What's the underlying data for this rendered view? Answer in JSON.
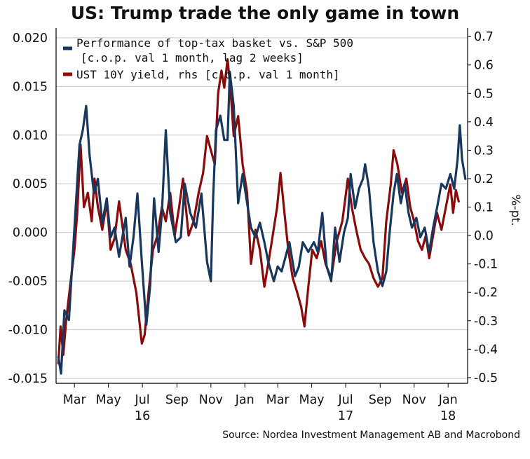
{
  "title": "US: Trump trade the only game in town",
  "source": "Source: Nordea Investment Management AB and Macrobond",
  "colors": {
    "series1": "#17375e",
    "series2": "#8b0a0a",
    "grid": "#c8c8c8",
    "axis": "#000000"
  },
  "chart_data": {
    "type": "line",
    "title": "US: Trump trade the only game in town",
    "x_axis": {
      "type": "date",
      "range": [
        "2016-01-28",
        "2018-02-05"
      ],
      "tick_labels": [
        {
          "date": "2016-03-01",
          "label": "Mar"
        },
        {
          "date": "2016-05-01",
          "label": "May"
        },
        {
          "date": "2016-07-01",
          "label": "Jul"
        },
        {
          "date": "2016-09-01",
          "label": "Sep"
        },
        {
          "date": "2016-11-01",
          "label": "Nov"
        },
        {
          "date": "2017-01-01",
          "label": "Jan"
        },
        {
          "date": "2017-03-01",
          "label": "Mar"
        },
        {
          "date": "2017-05-01",
          "label": "May"
        },
        {
          "date": "2017-07-01",
          "label": "Jul"
        },
        {
          "date": "2017-09-01",
          "label": "Sep"
        },
        {
          "date": "2017-11-01",
          "label": "Nov"
        },
        {
          "date": "2018-01-01",
          "label": "Jan"
        }
      ],
      "year_labels": [
        {
          "date": "2016-07-01",
          "label": "16"
        },
        {
          "date": "2017-07-01",
          "label": "17"
        },
        {
          "date": "2018-01-01",
          "label": "18"
        }
      ]
    },
    "y_left": {
      "range": [
        -0.0155,
        0.021
      ],
      "ticks": [
        "0.020",
        "0.015",
        "0.010",
        "0.005",
        "0.000",
        "-0.005",
        "-0.010",
        "-0.015"
      ]
    },
    "y_right": {
      "label": "%-pt.",
      "range": [
        -0.52,
        0.73
      ],
      "ticks": [
        "0.7",
        "0.6",
        "0.5",
        "0.4",
        "0.3",
        "0.2",
        "0.1",
        "0.0",
        "-0.1",
        "-0.2",
        "-0.3",
        "-0.4",
        "-0.5"
      ]
    },
    "grid": true,
    "legend_position": "top-left",
    "series": [
      {
        "name": "Performance of top-tax basket vs. S&P 500",
        "name_line2": "[c.o.p. val 1 month, lag 2 weeks]",
        "axis": "left",
        "color": "#17375e",
        "points": [
          [
            "2016-02-01",
            -0.0128
          ],
          [
            "2016-02-06",
            -0.0145
          ],
          [
            "2016-02-12",
            -0.008
          ],
          [
            "2016-02-20",
            -0.009
          ],
          [
            "2016-03-01",
            0.0005
          ],
          [
            "2016-03-10",
            0.009
          ],
          [
            "2016-03-16",
            0.0105
          ],
          [
            "2016-03-22",
            0.013
          ],
          [
            "2016-03-28",
            0.008
          ],
          [
            "2016-04-05",
            0.004
          ],
          [
            "2016-04-12",
            0.0055
          ],
          [
            "2016-04-20",
            0.001
          ],
          [
            "2016-04-28",
            0.0035
          ],
          [
            "2016-05-05",
            -0.0005
          ],
          [
            "2016-05-12",
            0.0005
          ],
          [
            "2016-05-20",
            -0.0025
          ],
          [
            "2016-06-01",
            0.0015
          ],
          [
            "2016-06-08",
            -0.0035
          ],
          [
            "2016-06-15",
            -0.0005
          ],
          [
            "2016-06-22",
            0.004
          ],
          [
            "2016-06-30",
            -0.003
          ],
          [
            "2016-07-08",
            -0.0095
          ],
          [
            "2016-07-15",
            -0.0055
          ],
          [
            "2016-07-22",
            0.0035
          ],
          [
            "2016-07-30",
            -0.002
          ],
          [
            "2016-08-05",
            0.002
          ],
          [
            "2016-08-12",
            0.0105
          ],
          [
            "2016-08-20",
            0.002
          ],
          [
            "2016-08-30",
            -0.001
          ],
          [
            "2016-09-08",
            -0.0005
          ],
          [
            "2016-09-15",
            0.005
          ],
          [
            "2016-09-25",
            0.002
          ],
          [
            "2016-10-05",
            0.0005
          ],
          [
            "2016-10-15",
            0.004
          ],
          [
            "2016-10-25",
            -0.003
          ],
          [
            "2016-11-01",
            -0.005
          ],
          [
            "2016-11-05",
            0.0035
          ],
          [
            "2016-11-10",
            0.0105
          ],
          [
            "2016-11-18",
            0.012
          ],
          [
            "2016-11-25",
            0.0095
          ],
          [
            "2016-12-01",
            0.0095
          ],
          [
            "2016-12-05",
            0.0165
          ],
          [
            "2016-12-12",
            0.013
          ],
          [
            "2016-12-20",
            0.003
          ],
          [
            "2016-12-28",
            0.006
          ],
          [
            "2017-01-05",
            0.003
          ],
          [
            "2017-01-12",
            0.0005
          ],
          [
            "2017-01-20",
            -0.0005
          ],
          [
            "2017-01-28",
            0.001
          ],
          [
            "2017-02-05",
            -0.001
          ],
          [
            "2017-02-12",
            -0.003
          ],
          [
            "2017-02-22",
            -0.005
          ],
          [
            "2017-03-01",
            -0.0035
          ],
          [
            "2017-03-08",
            -0.004
          ],
          [
            "2017-03-15",
            -0.0025
          ],
          [
            "2017-03-22",
            -0.001
          ],
          [
            "2017-04-01",
            -0.0045
          ],
          [
            "2017-04-08",
            -0.0035
          ],
          [
            "2017-04-15",
            -0.001
          ],
          [
            "2017-04-25",
            -0.002
          ],
          [
            "2017-05-05",
            -0.001
          ],
          [
            "2017-05-12",
            -0.002
          ],
          [
            "2017-05-20",
            0.002
          ],
          [
            "2017-05-28",
            -0.0035
          ],
          [
            "2017-06-05",
            -0.005
          ],
          [
            "2017-06-12",
            0.0005
          ],
          [
            "2017-06-20",
            -0.003
          ],
          [
            "2017-06-28",
            0.0
          ],
          [
            "2017-07-05",
            0.0015
          ],
          [
            "2017-07-10",
            0.006
          ],
          [
            "2017-07-18",
            0.0025
          ],
          [
            "2017-07-25",
            0.0045
          ],
          [
            "2017-08-01",
            0.0055
          ],
          [
            "2017-08-05",
            0.007
          ],
          [
            "2017-08-12",
            0.0045
          ],
          [
            "2017-08-20",
            -0.001
          ],
          [
            "2017-08-28",
            -0.004
          ],
          [
            "2017-09-05",
            -0.0055
          ],
          [
            "2017-09-12",
            -0.004
          ],
          [
            "2017-09-18",
            0.0
          ],
          [
            "2017-09-25",
            0.004
          ],
          [
            "2017-10-01",
            0.006
          ],
          [
            "2017-10-08",
            0.003
          ],
          [
            "2017-10-15",
            0.005
          ],
          [
            "2017-10-22",
            0.002
          ],
          [
            "2017-10-28",
            0.0005
          ],
          [
            "2017-11-05",
            0.0015
          ],
          [
            "2017-11-12",
            -0.0005
          ],
          [
            "2017-11-20",
            0.0005
          ],
          [
            "2017-11-28",
            -0.002
          ],
          [
            "2017-12-05",
            0.0005
          ],
          [
            "2017-12-12",
            0.0025
          ],
          [
            "2017-12-20",
            0.005
          ],
          [
            "2017-12-28",
            0.0045
          ],
          [
            "2018-01-05",
            0.006
          ],
          [
            "2018-01-12",
            0.0045
          ],
          [
            "2018-01-18",
            0.0075
          ],
          [
            "2018-01-22",
            0.011
          ],
          [
            "2018-01-26",
            0.0075
          ],
          [
            "2018-02-01",
            0.0055
          ]
        ]
      },
      {
        "name": "UST 10Y yield, rhs [c.o.p. val 1 month]",
        "axis": "right",
        "color": "#8b0a0a",
        "points": [
          [
            "2016-02-01",
            -0.45
          ],
          [
            "2016-02-05",
            -0.32
          ],
          [
            "2016-02-10",
            -0.42
          ],
          [
            "2016-02-15",
            -0.3
          ],
          [
            "2016-02-22",
            -0.18
          ],
          [
            "2016-03-01",
            -0.05
          ],
          [
            "2016-03-06",
            0.08
          ],
          [
            "2016-03-12",
            0.32
          ],
          [
            "2016-03-18",
            0.1
          ],
          [
            "2016-03-25",
            0.15
          ],
          [
            "2016-04-01",
            0.05
          ],
          [
            "2016-04-06",
            0.2
          ],
          [
            "2016-04-12",
            0.1
          ],
          [
            "2016-04-20",
            0.02
          ],
          [
            "2016-04-28",
            0.12
          ],
          [
            "2016-05-05",
            -0.05
          ],
          [
            "2016-05-12",
            -0.01
          ],
          [
            "2016-05-20",
            0.12
          ],
          [
            "2016-06-01",
            -0.05
          ],
          [
            "2016-06-10",
            -0.1
          ],
          [
            "2016-06-20",
            -0.2
          ],
          [
            "2016-06-30",
            -0.38
          ],
          [
            "2016-07-05",
            -0.35
          ],
          [
            "2016-07-12",
            -0.2
          ],
          [
            "2016-07-20",
            -0.05
          ],
          [
            "2016-07-28",
            0.0
          ],
          [
            "2016-08-05",
            0.1
          ],
          [
            "2016-08-12",
            0.05
          ],
          [
            "2016-08-20",
            0.15
          ],
          [
            "2016-08-28",
            0.0
          ],
          [
            "2016-09-05",
            0.1
          ],
          [
            "2016-09-12",
            0.2
          ],
          [
            "2016-09-22",
            0.0
          ],
          [
            "2016-10-01",
            0.05
          ],
          [
            "2016-10-10",
            0.15
          ],
          [
            "2016-10-18",
            0.22
          ],
          [
            "2016-10-25",
            0.35
          ],
          [
            "2016-11-01",
            0.3
          ],
          [
            "2016-11-08",
            0.25
          ],
          [
            "2016-11-14",
            0.5
          ],
          [
            "2016-11-20",
            0.58
          ],
          [
            "2016-11-25",
            0.52
          ],
          [
            "2016-12-01",
            0.62
          ],
          [
            "2016-12-06",
            0.52
          ],
          [
            "2016-12-12",
            0.35
          ],
          [
            "2016-12-20",
            0.42
          ],
          [
            "2016-12-28",
            0.25
          ],
          [
            "2017-01-05",
            0.15
          ],
          [
            "2017-01-12",
            -0.1
          ],
          [
            "2017-01-20",
            0.02
          ],
          [
            "2017-01-28",
            -0.05
          ],
          [
            "2017-02-05",
            -0.18
          ],
          [
            "2017-02-12",
            -0.1
          ],
          [
            "2017-02-20",
            0.0
          ],
          [
            "2017-02-28",
            0.1
          ],
          [
            "2017-03-06",
            0.22
          ],
          [
            "2017-03-12",
            0.1
          ],
          [
            "2017-03-20",
            -0.05
          ],
          [
            "2017-03-28",
            -0.15
          ],
          [
            "2017-04-05",
            -0.2
          ],
          [
            "2017-04-12",
            -0.25
          ],
          [
            "2017-04-18",
            -0.32
          ],
          [
            "2017-04-25",
            -0.18
          ],
          [
            "2017-05-02",
            -0.05
          ],
          [
            "2017-05-10",
            -0.08
          ],
          [
            "2017-05-18",
            -0.02
          ],
          [
            "2017-05-26",
            -0.1
          ],
          [
            "2017-06-05",
            -0.15
          ],
          [
            "2017-06-15",
            -0.02
          ],
          [
            "2017-06-25",
            0.05
          ],
          [
            "2017-07-05",
            0.2
          ],
          [
            "2017-07-12",
            0.1
          ],
          [
            "2017-07-20",
            0.02
          ],
          [
            "2017-07-28",
            -0.05
          ],
          [
            "2017-08-05",
            -0.08
          ],
          [
            "2017-08-12",
            -0.1
          ],
          [
            "2017-08-20",
            -0.15
          ],
          [
            "2017-08-28",
            -0.18
          ],
          [
            "2017-09-05",
            -0.15
          ],
          [
            "2017-09-12",
            0.05
          ],
          [
            "2017-09-20",
            0.18
          ],
          [
            "2017-09-25",
            0.3
          ],
          [
            "2017-10-02",
            0.25
          ],
          [
            "2017-10-10",
            0.15
          ],
          [
            "2017-10-18",
            0.2
          ],
          [
            "2017-10-25",
            0.1
          ],
          [
            "2017-11-01",
            0.05
          ],
          [
            "2017-11-08",
            -0.02
          ],
          [
            "2017-11-15",
            -0.05
          ],
          [
            "2017-11-22",
            0.0
          ],
          [
            "2017-11-28",
            -0.08
          ],
          [
            "2017-12-05",
            0.0
          ],
          [
            "2017-12-12",
            0.08
          ],
          [
            "2017-12-20",
            0.02
          ],
          [
            "2017-12-28",
            0.1
          ],
          [
            "2018-01-05",
            0.18
          ],
          [
            "2018-01-10",
            0.08
          ],
          [
            "2018-01-15",
            0.16
          ],
          [
            "2018-01-20",
            0.12
          ]
        ]
      }
    ]
  }
}
